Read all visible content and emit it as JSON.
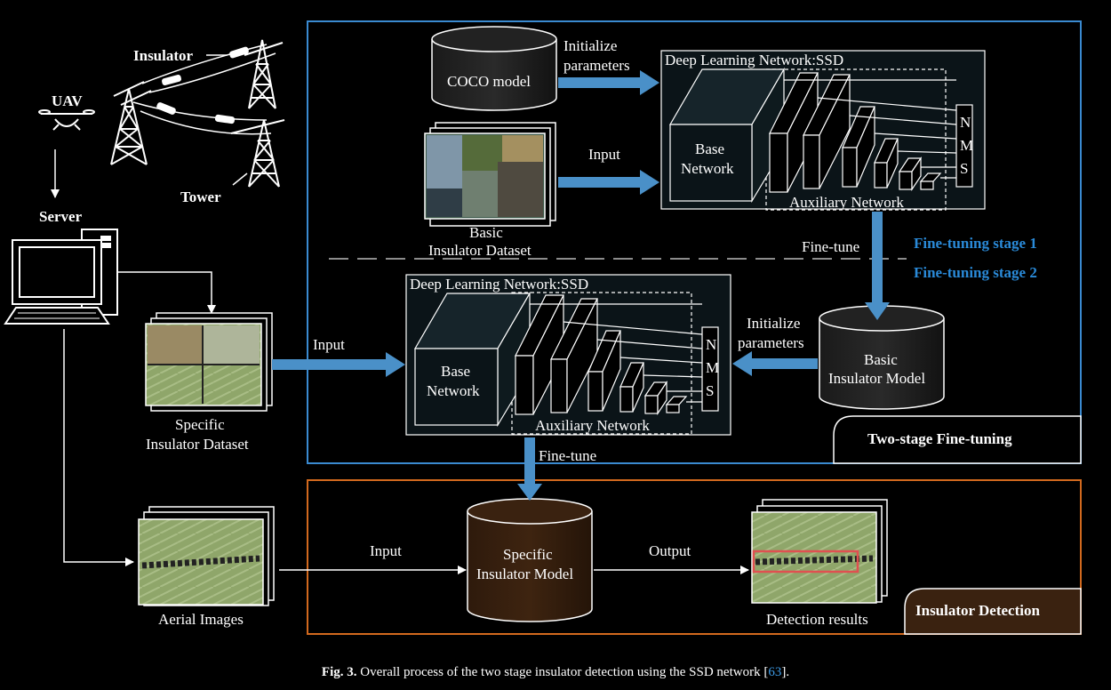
{
  "labels": {
    "insulator": "Insulator",
    "uav": "UAV",
    "tower": "Tower",
    "server": "Server",
    "coco_model": "COCO model",
    "initialize_params_1": [
      "Initialize",
      "parameters"
    ],
    "input_top": "Input",
    "basic_dataset": [
      "Basic",
      "Insulator Dataset"
    ],
    "dln_title_top": "Deep Learning Network:SSD",
    "base_network": [
      "Base",
      "Network"
    ],
    "auxiliary_network": "Auxiliary Network",
    "nms": [
      "N",
      "M",
      "S"
    ],
    "fine_tune_1": "Fine-tune",
    "stage1": "Fine-tuning stage 1",
    "stage2": "Fine-tuning stage 2",
    "dln_title_mid": "Deep Learning Network:SSD",
    "input_mid": "Input",
    "initialize_params_2": [
      "Initialize",
      "parameters"
    ],
    "basic_model": [
      "Basic",
      "Insulator Model"
    ],
    "specific_dataset": [
      "Specific",
      "Insulator Dataset"
    ],
    "two_stage": "Two-stage Fine-tuning",
    "fine_tune_2": "Fine-tune",
    "specific_model": [
      "Specific",
      "Insulator Model"
    ],
    "input_bottom": "Input",
    "output": "Output",
    "aerial_images": "Aerial Images",
    "detection_results": "Detection results",
    "insulator_detection": "Insulator Detection"
  },
  "caption": {
    "prefix": "Fig. 3.",
    "text": "Overall process of the two stage insulator detection using the SSD network [",
    "ref": "63",
    "suffix": "]."
  },
  "colors": {
    "background": "#000000",
    "two_stage_border": "#3a8ad0",
    "detection_border": "#d2691e",
    "arrow": "#4a90c8",
    "stage_text": "#2a8ad8",
    "detection_tab": "#3a2210",
    "box_red": "#e05050"
  }
}
